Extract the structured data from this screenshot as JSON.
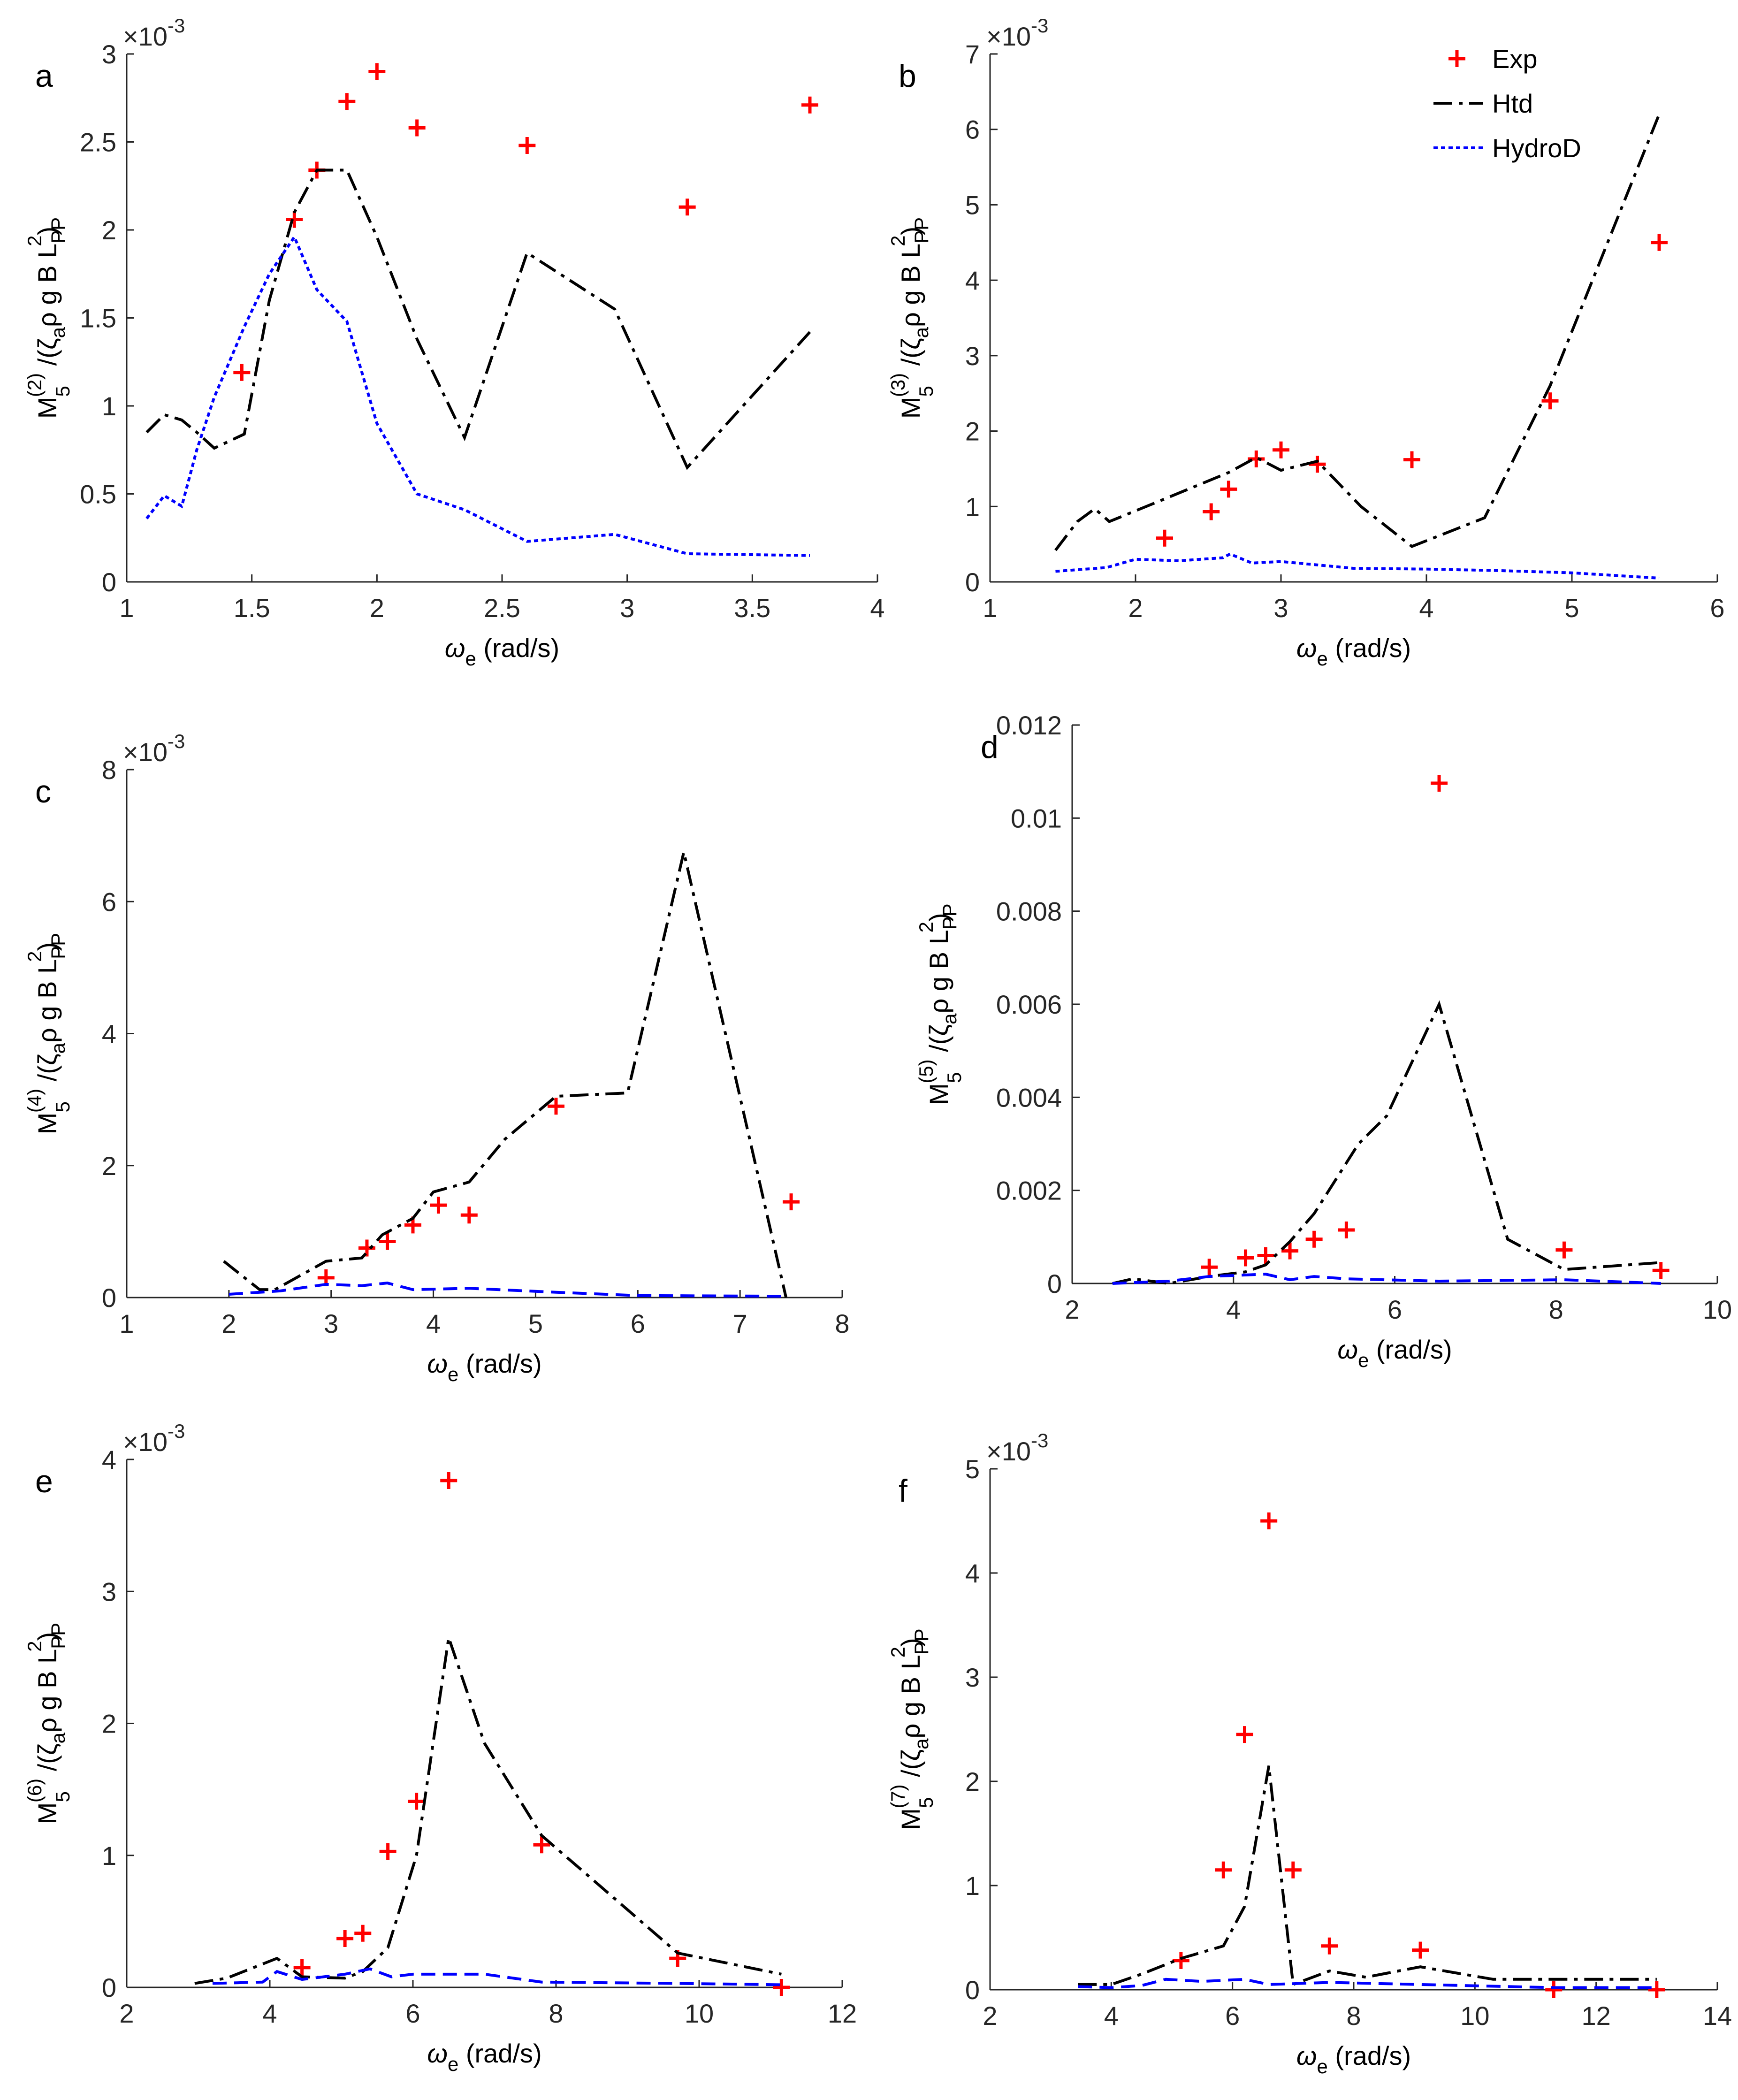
{
  "legend": {
    "entries": [
      {
        "label": "Exp",
        "color": "#ff0000",
        "style": "plus"
      },
      {
        "label": "Htd",
        "color": "#000000",
        "style": "dashdot"
      },
      {
        "label": "HydroD",
        "color": "#0000ff",
        "style": "dotted"
      }
    ],
    "placement": "top-right of panel b"
  },
  "chart_data": [
    {
      "type": "line",
      "panel_label": "a",
      "xlabel": "ωe (rad/s)",
      "ylabel": "M5(2)/(ζaρ g B LPP2)",
      "y_exponent": "×10-3",
      "xlim": [
        1,
        4
      ],
      "ylim": [
        0,
        3
      ],
      "xticks": [
        "1",
        "1.5",
        "2",
        "2.5",
        "3",
        "3.5",
        "4"
      ],
      "yticks": [
        "0",
        "0.5",
        "1",
        "1.5",
        "2",
        "2.5",
        "3"
      ],
      "series": [
        {
          "name": "Exp",
          "kind": "scatter",
          "color": "#ff0000",
          "x": [
            1.46,
            1.67,
            1.76,
            1.88,
            2.0,
            2.16,
            2.6,
            3.24,
            3.73
          ],
          "y": [
            1.19,
            2.06,
            2.34,
            2.73,
            2.9,
            2.58,
            2.48,
            2.13,
            2.71
          ]
        },
        {
          "name": "Htd",
          "kind": "line",
          "dash": "dashdot",
          "color": "#000000",
          "x": [
            1.08,
            1.15,
            1.22,
            1.28,
            1.35,
            1.47,
            1.57,
            1.67,
            1.76,
            1.88,
            2.0,
            2.16,
            2.35,
            2.6,
            2.95,
            3.24,
            3.73
          ],
          "y": [
            0.85,
            0.95,
            0.92,
            0.85,
            0.76,
            0.84,
            1.6,
            2.1,
            2.34,
            2.34,
            1.96,
            1.38,
            0.82,
            1.87,
            1.55,
            0.65,
            1.42
          ]
        },
        {
          "name": "HydroD",
          "kind": "line",
          "dash": "dotted",
          "color": "#0000ff",
          "x": [
            1.08,
            1.15,
            1.22,
            1.28,
            1.35,
            1.47,
            1.57,
            1.67,
            1.76,
            1.88,
            2.0,
            2.16,
            2.35,
            2.6,
            2.95,
            3.24,
            3.73
          ],
          "y": [
            0.36,
            0.49,
            0.43,
            0.75,
            1.05,
            1.45,
            1.75,
            1.96,
            1.66,
            1.48,
            0.9,
            0.5,
            0.41,
            0.23,
            0.27,
            0.16,
            0.15
          ]
        }
      ]
    },
    {
      "type": "line",
      "panel_label": "b",
      "xlabel": "ωe (rad/s)",
      "ylabel": "M5(3)/(ζaρ g B LPP2)",
      "y_exponent": "×10-3",
      "xlim": [
        1,
        6
      ],
      "ylim": [
        0,
        7
      ],
      "xticks": [
        "1",
        "2",
        "3",
        "4",
        "5",
        "6"
      ],
      "yticks": [
        "0",
        "1",
        "2",
        "3",
        "4",
        "5",
        "6",
        "7"
      ],
      "series": [
        {
          "name": "Exp",
          "kind": "scatter",
          "color": "#ff0000",
          "x": [
            2.2,
            2.52,
            2.64,
            2.83,
            3.0,
            3.25,
            3.9,
            4.85,
            5.6
          ],
          "y": [
            0.58,
            0.93,
            1.23,
            1.63,
            1.75,
            1.56,
            1.62,
            2.4,
            4.5
          ]
        },
        {
          "name": "Htd",
          "kind": "line",
          "dash": "dashdot",
          "color": "#000000",
          "x": [
            1.45,
            1.6,
            1.72,
            1.82,
            2.2,
            2.64,
            2.83,
            3.0,
            3.25,
            3.55,
            3.9,
            4.4,
            4.85,
            5.6
          ],
          "y": [
            0.42,
            0.8,
            0.97,
            0.8,
            1.1,
            1.45,
            1.65,
            1.48,
            1.6,
            1.0,
            0.47,
            0.85,
            2.6,
            6.2
          ]
        },
        {
          "name": "HydroD",
          "kind": "line",
          "dash": "dotted",
          "color": "#0000ff",
          "x": [
            1.45,
            1.8,
            2.0,
            2.3,
            2.6,
            2.65,
            2.8,
            3.0,
            3.5,
            4.0,
            4.5,
            5.0,
            5.6
          ],
          "y": [
            0.14,
            0.19,
            0.3,
            0.28,
            0.32,
            0.37,
            0.25,
            0.27,
            0.18,
            0.17,
            0.15,
            0.12,
            0.05
          ]
        }
      ]
    },
    {
      "type": "line",
      "panel_label": "c",
      "xlabel": "ωe (rad/s)",
      "ylabel": "M5(4)/(ζaρ g B LPP2)",
      "y_exponent": "×10-3",
      "xlim": [
        1,
        8
      ],
      "ylim": [
        0,
        8
      ],
      "xticks": [
        "1",
        "2",
        "3",
        "4",
        "5",
        "6",
        "7",
        "8"
      ],
      "yticks": [
        "0",
        "2",
        "4",
        "6",
        "8"
      ],
      "series": [
        {
          "name": "Exp",
          "kind": "scatter",
          "color": "#ff0000",
          "x": [
            2.95,
            3.35,
            3.55,
            3.8,
            4.05,
            4.35,
            5.2,
            7.5
          ],
          "y": [
            0.3,
            0.75,
            0.85,
            1.1,
            1.4,
            1.25,
            2.9,
            1.45
          ]
        },
        {
          "name": "Htd",
          "kind": "line",
          "dash": "dashdot",
          "color": "#000000",
          "x": [
            1.95,
            2.3,
            2.45,
            2.95,
            3.3,
            3.5,
            3.8,
            4.0,
            4.35,
            4.7,
            5.2,
            5.9,
            6.45,
            7.45
          ],
          "y": [
            0.55,
            0.12,
            0.12,
            0.55,
            0.6,
            0.95,
            1.2,
            1.6,
            1.75,
            2.4,
            3.05,
            3.1,
            6.75,
            0.0
          ]
        },
        {
          "name": "HydroD",
          "kind": "line",
          "dash": "dashed",
          "color": "#0000ff",
          "x": [
            2.0,
            2.5,
            2.95,
            3.3,
            3.55,
            3.8,
            4.35,
            5.2,
            6.0,
            7.45
          ],
          "y": [
            0.05,
            0.1,
            0.2,
            0.18,
            0.22,
            0.12,
            0.14,
            0.08,
            0.03,
            0.02
          ]
        }
      ]
    },
    {
      "type": "line",
      "panel_label": "d",
      "xlabel": "ωe (rad/s)",
      "ylabel": "M5(5)/(ζaρ g B LPP2)",
      "y_exponent": "",
      "xlim": [
        2,
        10
      ],
      "ylim": [
        0,
        0.012
      ],
      "xticks": [
        "2",
        "4",
        "6",
        "8",
        "10"
      ],
      "yticks": [
        "0",
        "0.002",
        "0.004",
        "0.006",
        "0.008",
        "0.01",
        "0.012"
      ],
      "series": [
        {
          "name": "Exp",
          "kind": "scatter",
          "color": "#ff0000",
          "x": [
            3.7,
            4.15,
            4.4,
            4.7,
            5.0,
            5.4,
            6.55,
            8.1,
            9.3
          ],
          "y": [
            0.00035,
            0.00055,
            0.0006,
            0.0007,
            0.00095,
            0.00115,
            0.01075,
            0.00072,
            0.00028
          ]
        },
        {
          "name": "Htd",
          "kind": "line",
          "dash": "dashdot",
          "color": "#000000",
          "x": [
            2.5,
            2.75,
            3.2,
            3.7,
            4.15,
            4.4,
            4.7,
            5.0,
            5.55,
            5.9,
            6.55,
            7.4,
            8.1,
            9.3
          ],
          "y": [
            0.0,
            0.0001,
            0.0,
            0.00015,
            0.00025,
            0.0004,
            0.0009,
            0.0015,
            0.003,
            0.0036,
            0.006,
            0.00095,
            0.0003,
            0.00045
          ]
        },
        {
          "name": "HydroD",
          "kind": "line",
          "dash": "dashed",
          "color": "#0000ff",
          "x": [
            2.5,
            3.2,
            3.7,
            4.4,
            4.7,
            5.0,
            5.4,
            6.55,
            8.1,
            9.3
          ],
          "y": [
            0.0,
            5e-05,
            0.00015,
            0.0002,
            8e-05,
            0.00015,
            0.0001,
            5e-05,
            8e-05,
            0.0
          ]
        }
      ]
    },
    {
      "type": "line",
      "panel_label": "e",
      "xlabel": "ωe (rad/s)",
      "ylabel": "M5(6)/(ζaρ g B LPP2)",
      "y_exponent": "×10-3",
      "xlim": [
        2,
        12
      ],
      "ylim": [
        0,
        4
      ],
      "xticks": [
        "2",
        "4",
        "6",
        "8",
        "10",
        "12"
      ],
      "yticks": [
        "0",
        "1",
        "2",
        "3",
        "4"
      ],
      "series": [
        {
          "name": "Exp",
          "kind": "scatter",
          "color": "#ff0000",
          "x": [
            4.45,
            5.05,
            5.3,
            5.65,
            6.05,
            6.5,
            7.8,
            9.7,
            11.15
          ],
          "y": [
            0.15,
            0.37,
            0.41,
            1.03,
            1.41,
            3.84,
            1.08,
            0.22,
            0.0
          ]
        },
        {
          "name": "Htd",
          "kind": "line",
          "dash": "dashdot",
          "color": "#000000",
          "x": [
            2.95,
            3.4,
            4.1,
            4.45,
            5.05,
            5.3,
            5.65,
            6.05,
            6.5,
            7.0,
            7.8,
            9.7,
            11.15
          ],
          "y": [
            0.03,
            0.07,
            0.22,
            0.08,
            0.07,
            0.12,
            0.3,
            1.0,
            2.65,
            1.85,
            1.15,
            0.26,
            0.1
          ]
        },
        {
          "name": "HydroD",
          "kind": "line",
          "dash": "dashed",
          "color": "#0000ff",
          "x": [
            3.2,
            3.9,
            4.1,
            4.45,
            5.05,
            5.4,
            5.7,
            6.0,
            6.5,
            7.0,
            7.8,
            9.7,
            11.15
          ],
          "y": [
            0.03,
            0.04,
            0.12,
            0.06,
            0.1,
            0.14,
            0.08,
            0.1,
            0.1,
            0.1,
            0.04,
            0.03,
            0.02
          ]
        }
      ]
    },
    {
      "type": "line",
      "panel_label": "f",
      "xlabel": "ωe (rad/s)",
      "ylabel": "M5(7)/(ζaρ g B LPP2)",
      "y_exponent": "×10-3",
      "xlim": [
        2,
        14
      ],
      "ylim": [
        0,
        5
      ],
      "xticks": [
        "2",
        "4",
        "6",
        "8",
        "10",
        "12",
        "14"
      ],
      "yticks": [
        "0",
        "1",
        "2",
        "3",
        "4",
        "5"
      ],
      "series": [
        {
          "name": "Exp",
          "kind": "scatter",
          "color": "#ff0000",
          "x": [
            5.15,
            5.85,
            6.2,
            6.6,
            7.0,
            7.6,
            9.1,
            11.3,
            13.0
          ],
          "y": [
            0.28,
            1.15,
            2.45,
            4.5,
            1.15,
            0.42,
            0.38,
            0.0,
            0.0
          ]
        },
        {
          "name": "Htd",
          "kind": "line",
          "dash": "dashdot",
          "color": "#000000",
          "x": [
            3.45,
            4.0,
            4.5,
            5.15,
            5.85,
            6.2,
            6.6,
            7.0,
            7.6,
            8.2,
            9.1,
            10.3,
            13.0
          ],
          "y": [
            0.05,
            0.05,
            0.15,
            0.3,
            0.42,
            0.8,
            2.15,
            0.05,
            0.18,
            0.12,
            0.22,
            0.1,
            0.1
          ]
        },
        {
          "name": "HydroD",
          "kind": "line",
          "dash": "dashed",
          "color": "#0000ff",
          "x": [
            3.45,
            4.0,
            4.5,
            4.9,
            5.5,
            6.2,
            6.6,
            7.6,
            9.1,
            11.3,
            13.0
          ],
          "y": [
            0.03,
            0.02,
            0.04,
            0.1,
            0.08,
            0.1,
            0.05,
            0.07,
            0.05,
            0.02,
            0.02
          ]
        }
      ]
    }
  ]
}
